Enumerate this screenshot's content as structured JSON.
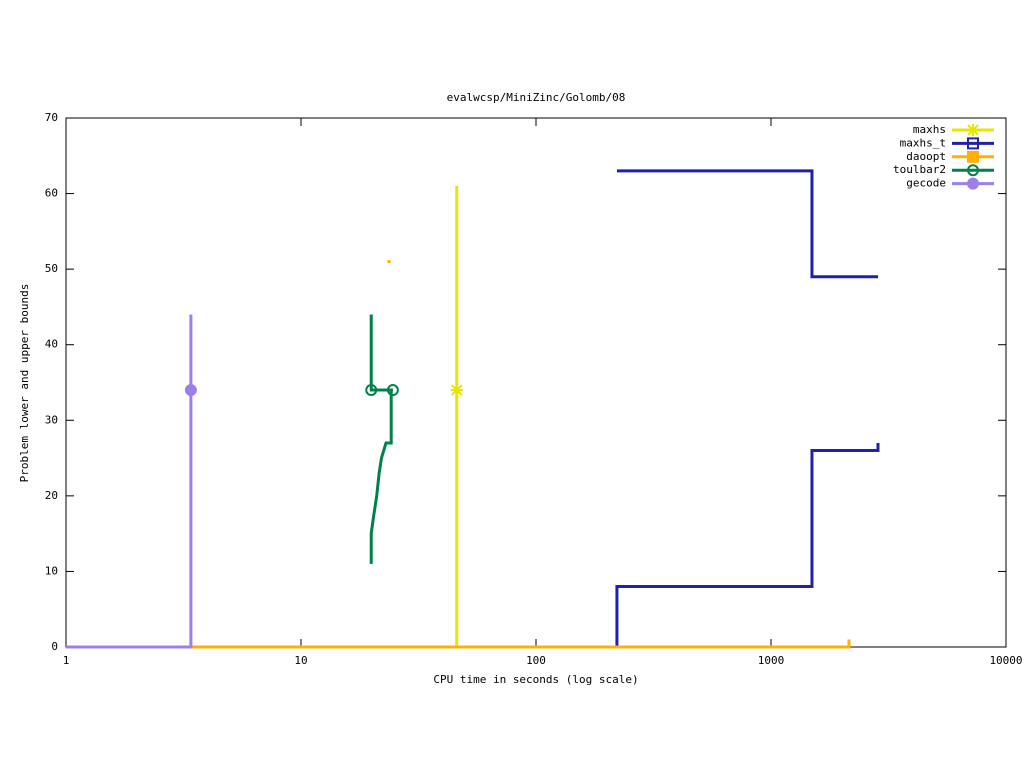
{
  "chart_data": {
    "type": "line",
    "title": "evalwcsp/MiniZinc/Golomb/08",
    "x_label": "CPU time in seconds (log scale)",
    "y_label": "Problem lower and upper bounds",
    "x_scale": "log",
    "xlim": [
      1,
      10000
    ],
    "xticks": [
      1,
      10,
      100,
      1000,
      10000
    ],
    "ylim": [
      0,
      70
    ],
    "yticks": [
      0,
      10,
      20,
      30,
      40,
      50,
      60,
      70
    ],
    "legend": "top-right",
    "series": [
      {
        "name": "maxhs",
        "color": "#e6e600",
        "marker": "asterisk",
        "x": [
          46,
          46
        ],
        "values": [
          0,
          61
        ],
        "marker_x": [
          46
        ],
        "marker_y": [
          34
        ]
      },
      {
        "name": "maxhs_t",
        "color": "#2020aa",
        "marker": "square",
        "x": [
          221,
          1494,
          1494,
          2853,
          null,
          221,
          221,
          1494,
          1494,
          2853,
          2853
        ],
        "values": [
          63,
          63,
          49,
          49,
          null,
          0,
          8,
          8,
          26,
          26,
          27
        ],
        "marker_x": [],
        "marker_y": []
      },
      {
        "name": "daoopt",
        "color": "#ffb000",
        "marker": "filled-square",
        "x": [
          1,
          2147,
          2147,
          null,
          23.7,
          23.7
        ],
        "values": [
          0,
          0,
          1,
          null,
          50.8,
          51.2
        ],
        "marker_x": [],
        "marker_y": []
      },
      {
        "name": "toulbar2",
        "color": "#00804a",
        "marker": "circle",
        "x": [
          19.9,
          19.9,
          24.6,
          null,
          19.9,
          19.9,
          20.3,
          21,
          21.5,
          22,
          23,
          24.2,
          24.2
        ],
        "values": [
          44,
          34,
          34,
          null,
          11,
          15,
          17,
          20,
          23,
          25,
          27,
          27,
          34
        ],
        "marker_x": [
          19.9,
          24.6
        ],
        "marker_y": [
          34,
          34
        ]
      },
      {
        "name": "gecode",
        "color": "#9a80e8",
        "marker": "filled-circle",
        "x": [
          1,
          3.4,
          3.4
        ],
        "values": [
          0,
          0,
          44
        ],
        "marker_x": [
          3.4
        ],
        "marker_y": [
          34
        ]
      }
    ]
  }
}
